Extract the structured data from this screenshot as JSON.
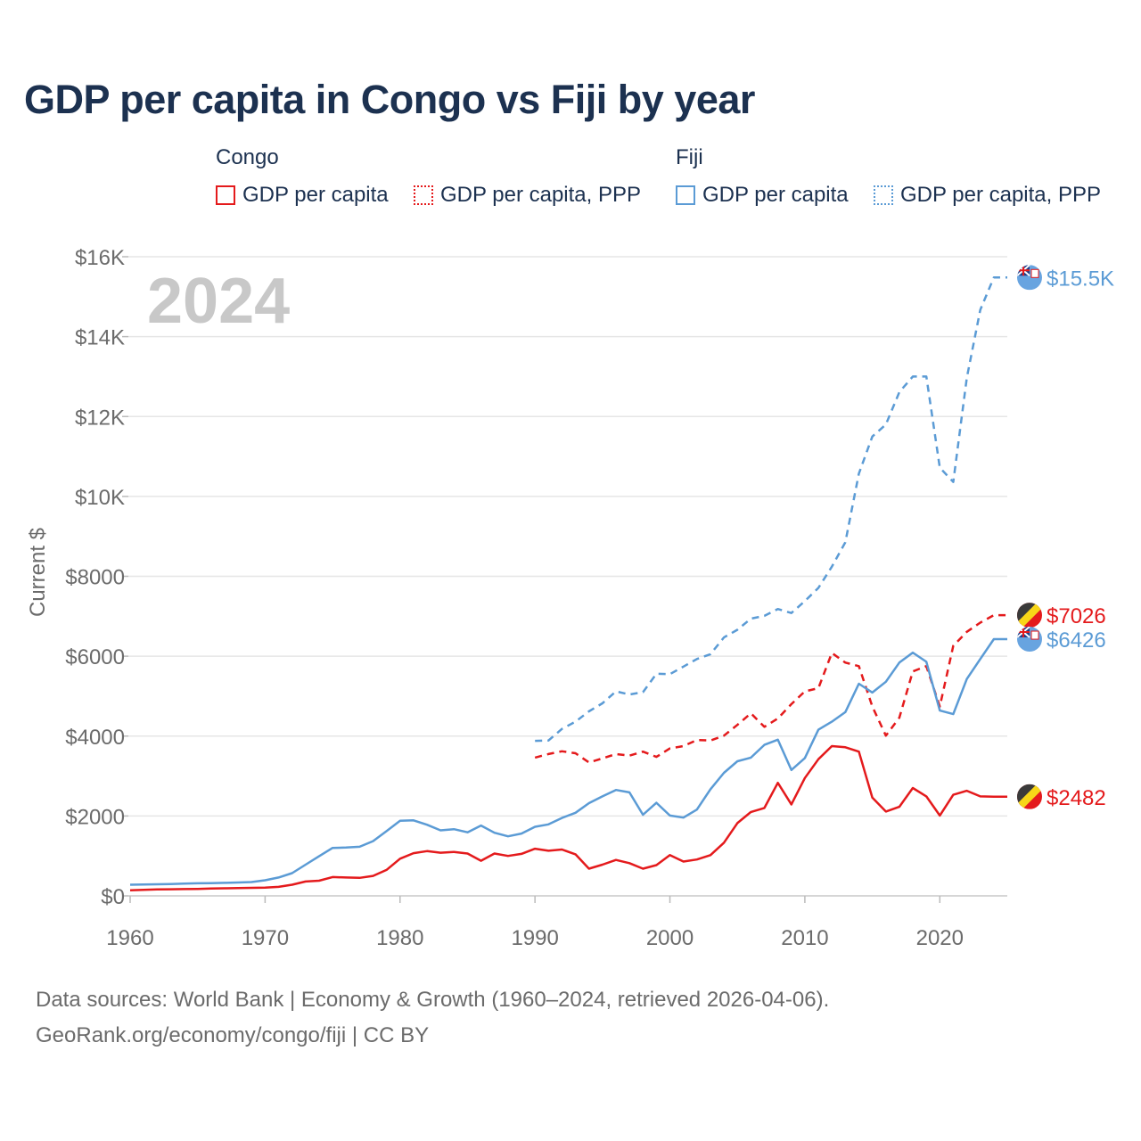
{
  "title": "GDP per capita in Congo vs Fiji by year",
  "legend": {
    "groups": [
      {
        "name": "Congo",
        "items": [
          "GDP per capita",
          "GDP per capita, PPP"
        ]
      },
      {
        "name": "Fiji",
        "items": [
          "GDP per capita",
          "GDP per capita, PPP"
        ]
      }
    ]
  },
  "colors": {
    "congo": "#e41a1c",
    "fiji": "#5b9bd5",
    "grid": "#e6e6e6",
    "axis_text": "#6b6b6b",
    "year_watermark": "#c8c8c8"
  },
  "chart_data": {
    "type": "line",
    "title": "GDP per capita in Congo vs Fiji by year",
    "year_label": "2024",
    "xlabel": "",
    "ylabel": "Current $",
    "xlim": [
      1960,
      2025
    ],
    "ylim": [
      0,
      16000
    ],
    "x_ticks": [
      1960,
      1970,
      1980,
      1990,
      2000,
      2010,
      2020
    ],
    "x_tick_labels": [
      "1960",
      "1970",
      "1980",
      "1990",
      "2000",
      "2010",
      "2020"
    ],
    "y_ticks": [
      0,
      2000,
      4000,
      6000,
      8000,
      10000,
      12000,
      14000,
      16000
    ],
    "y_tick_labels": [
      "$0",
      "$2000",
      "$4000",
      "$6000",
      "$8000",
      "$10K",
      "$12K",
      "$14K",
      "$16K"
    ],
    "grid": true,
    "series": [
      {
        "name": "Congo GDP per capita",
        "country": "Congo",
        "color": "#e41a1c",
        "dash": "solid",
        "end_label": "$2482",
        "x": [
          1960,
          1961,
          1962,
          1963,
          1964,
          1965,
          1966,
          1967,
          1968,
          1969,
          1970,
          1971,
          1972,
          1973,
          1974,
          1975,
          1976,
          1977,
          1978,
          1979,
          1980,
          1981,
          1982,
          1983,
          1984,
          1985,
          1986,
          1987,
          1988,
          1989,
          1990,
          1991,
          1992,
          1993,
          1994,
          1995,
          1996,
          1997,
          1998,
          1999,
          2000,
          2001,
          2002,
          2003,
          2004,
          2005,
          2006,
          2007,
          2008,
          2009,
          2010,
          2011,
          2012,
          2013,
          2014,
          2015,
          2016,
          2017,
          2018,
          2019,
          2020,
          2021,
          2022,
          2023,
          2024
        ],
        "values": [
          140,
          150,
          160,
          165,
          170,
          175,
          185,
          190,
          195,
          200,
          205,
          225,
          280,
          360,
          380,
          470,
          460,
          450,
          500,
          650,
          930,
          1070,
          1120,
          1080,
          1100,
          1060,
          880,
          1060,
          1000,
          1050,
          1180,
          1130,
          1160,
          1040,
          680,
          780,
          900,
          820,
          680,
          770,
          1020,
          860,
          910,
          1020,
          1330,
          1820,
          2100,
          2200,
          2830,
          2290,
          2950,
          3420,
          3750,
          3720,
          3610,
          2460,
          2110,
          2230,
          2700,
          2490,
          2010,
          2530,
          2630,
          2490,
          2482
        ]
      },
      {
        "name": "Congo GDP per capita, PPP",
        "country": "Congo",
        "color": "#e41a1c",
        "dash": "dashed",
        "end_label": "$7026",
        "x": [
          1990,
          1991,
          1992,
          1993,
          1994,
          1995,
          1996,
          1997,
          1998,
          1999,
          2000,
          2001,
          2002,
          2003,
          2004,
          2005,
          2006,
          2007,
          2008,
          2009,
          2010,
          2011,
          2012,
          2013,
          2014,
          2015,
          2016,
          2017,
          2018,
          2019,
          2020,
          2021,
          2022,
          2023,
          2024
        ],
        "values": [
          3460,
          3550,
          3620,
          3570,
          3340,
          3440,
          3550,
          3510,
          3610,
          3480,
          3690,
          3750,
          3900,
          3890,
          4010,
          4280,
          4570,
          4230,
          4440,
          4800,
          5120,
          5200,
          6080,
          5840,
          5750,
          4740,
          4010,
          4460,
          5620,
          5750,
          4740,
          6260,
          6610,
          6840,
          7026
        ]
      },
      {
        "name": "Fiji GDP per capita",
        "country": "Fiji",
        "color": "#5b9bd5",
        "dash": "solid",
        "end_label": "$6426",
        "x": [
          1960,
          1961,
          1962,
          1963,
          1964,
          1965,
          1966,
          1967,
          1968,
          1969,
          1970,
          1971,
          1972,
          1973,
          1974,
          1975,
          1976,
          1977,
          1978,
          1979,
          1980,
          1981,
          1982,
          1983,
          1984,
          1985,
          1986,
          1987,
          1988,
          1989,
          1990,
          1991,
          1992,
          1993,
          1994,
          1995,
          1996,
          1997,
          1998,
          1999,
          2000,
          2001,
          2002,
          2003,
          2004,
          2005,
          2006,
          2007,
          2008,
          2009,
          2010,
          2011,
          2012,
          2013,
          2014,
          2015,
          2016,
          2017,
          2018,
          2019,
          2020,
          2021,
          2022,
          2023,
          2024
        ],
        "values": [
          280,
          285,
          290,
          295,
          305,
          315,
          320,
          325,
          335,
          345,
          390,
          460,
          570,
          780,
          990,
          1200,
          1210,
          1230,
          1370,
          1620,
          1880,
          1890,
          1780,
          1640,
          1670,
          1590,
          1760,
          1580,
          1490,
          1560,
          1730,
          1790,
          1950,
          2080,
          2320,
          2490,
          2650,
          2590,
          2030,
          2330,
          2010,
          1960,
          2160,
          2670,
          3080,
          3370,
          3460,
          3780,
          3910,
          3150,
          3450,
          4160,
          4360,
          4600,
          5310,
          5090,
          5360,
          5840,
          6090,
          5860,
          4640,
          4550,
          5430,
          5930,
          6426
        ]
      },
      {
        "name": "Fiji GDP per capita, PPP",
        "country": "Fiji",
        "color": "#5b9bd5",
        "dash": "dashed",
        "end_label": "$15.5K",
        "x": [
          1990,
          1991,
          1992,
          1993,
          1994,
          1995,
          1996,
          1997,
          1998,
          1999,
          2000,
          2001,
          2002,
          2003,
          2004,
          2005,
          2006,
          2007,
          2008,
          2009,
          2010,
          2011,
          2012,
          2013,
          2014,
          2015,
          2016,
          2017,
          2018,
          2019,
          2020,
          2021,
          2022,
          2023,
          2024
        ],
        "values": [
          3880,
          3890,
          4180,
          4360,
          4620,
          4820,
          5120,
          5040,
          5100,
          5560,
          5550,
          5740,
          5930,
          6050,
          6470,
          6660,
          6940,
          7010,
          7180,
          7080,
          7380,
          7710,
          8240,
          8850,
          10570,
          11500,
          11800,
          12610,
          13000,
          13000,
          10720,
          10360,
          12970,
          14670,
          15480
        ]
      }
    ]
  },
  "footer": {
    "source_line": "Data sources: World Bank | Economy & Growth (1960–2024, retrieved 2026-04-06).",
    "url_line": "GeoRank.org/economy/congo/fiji | CC BY"
  }
}
